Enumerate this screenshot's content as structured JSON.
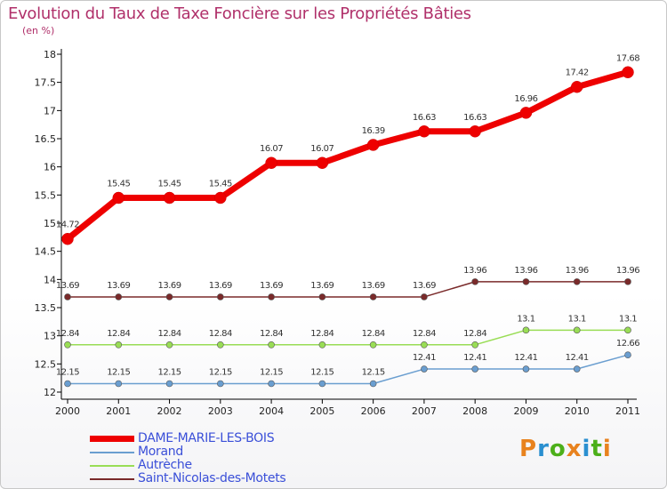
{
  "title": "Evolution du Taux de Taxe Foncière sur les Propriétés Bâties",
  "unit_label": "(en %)",
  "logo": {
    "text": "Proxiti",
    "colors": [
      "#e8821e",
      "#2a8fd0",
      "#4caf1a",
      "#e8821e",
      "#2a8fd0",
      "#4caf1a",
      "#e8821e"
    ]
  },
  "chart_data": {
    "type": "line",
    "title": "Evolution du Taux de Taxe Foncière sur les Propriétés Bâties",
    "ylabel": "(en %)",
    "xlabel": "",
    "x": [
      "2000",
      "2001",
      "2002",
      "2003",
      "2004",
      "2005",
      "2006",
      "2007",
      "2008",
      "2009",
      "2010",
      "2011"
    ],
    "ylim": [
      12,
      18
    ],
    "yticks": [
      "12",
      "12.5",
      "13",
      "13.5",
      "14",
      "14.5",
      "15",
      "15.5",
      "16",
      "16.5",
      "17",
      "17.5",
      "18"
    ],
    "grid": false,
    "legend_position": "bottom-left",
    "series": [
      {
        "name": "DAME-MARIE-LES-BOIS",
        "color": "#ee0000",
        "emphasis": true,
        "values": [
          14.72,
          15.45,
          15.45,
          15.45,
          16.07,
          16.07,
          16.39,
          16.63,
          16.63,
          16.96,
          17.42,
          17.68
        ],
        "labels": [
          "14.72",
          "15.45",
          "15.45",
          "15.45",
          "16.07",
          "16.07",
          "16.39",
          "16.63",
          "16.63",
          "16.96",
          "17.42",
          "17.68"
        ]
      },
      {
        "name": "Morand",
        "color": "#6a9ed0",
        "emphasis": false,
        "values": [
          12.15,
          12.15,
          12.15,
          12.15,
          12.15,
          12.15,
          12.15,
          12.41,
          12.41,
          12.41,
          12.41,
          12.66
        ],
        "labels": [
          "12.15",
          "12.15",
          "12.15",
          "12.15",
          "12.15",
          "12.15",
          "12.15",
          "12.41",
          "12.41",
          "12.41",
          "12.41",
          "12.66"
        ]
      },
      {
        "name": "Autrèche",
        "color": "#99dd55",
        "emphasis": false,
        "values": [
          12.84,
          12.84,
          12.84,
          12.84,
          12.84,
          12.84,
          12.84,
          12.84,
          12.84,
          13.1,
          13.1,
          13.1
        ],
        "labels": [
          "12.84",
          "12.84",
          "12.84",
          "12.84",
          "12.84",
          "12.84",
          "12.84",
          "12.84",
          "12.84",
          "13.1",
          "13.1",
          "13.1"
        ]
      },
      {
        "name": "Saint-Nicolas-des-Motets",
        "color": "#7a2a2a",
        "emphasis": false,
        "values": [
          13.69,
          13.69,
          13.69,
          13.69,
          13.69,
          13.69,
          13.69,
          13.69,
          13.96,
          13.96,
          13.96,
          13.96
        ],
        "labels": [
          "13.69",
          "13.69",
          "13.69",
          "13.69",
          "13.69",
          "13.69",
          "13.69",
          "13.69",
          "13.96",
          "13.96",
          "13.96",
          "13.96"
        ]
      }
    ]
  }
}
